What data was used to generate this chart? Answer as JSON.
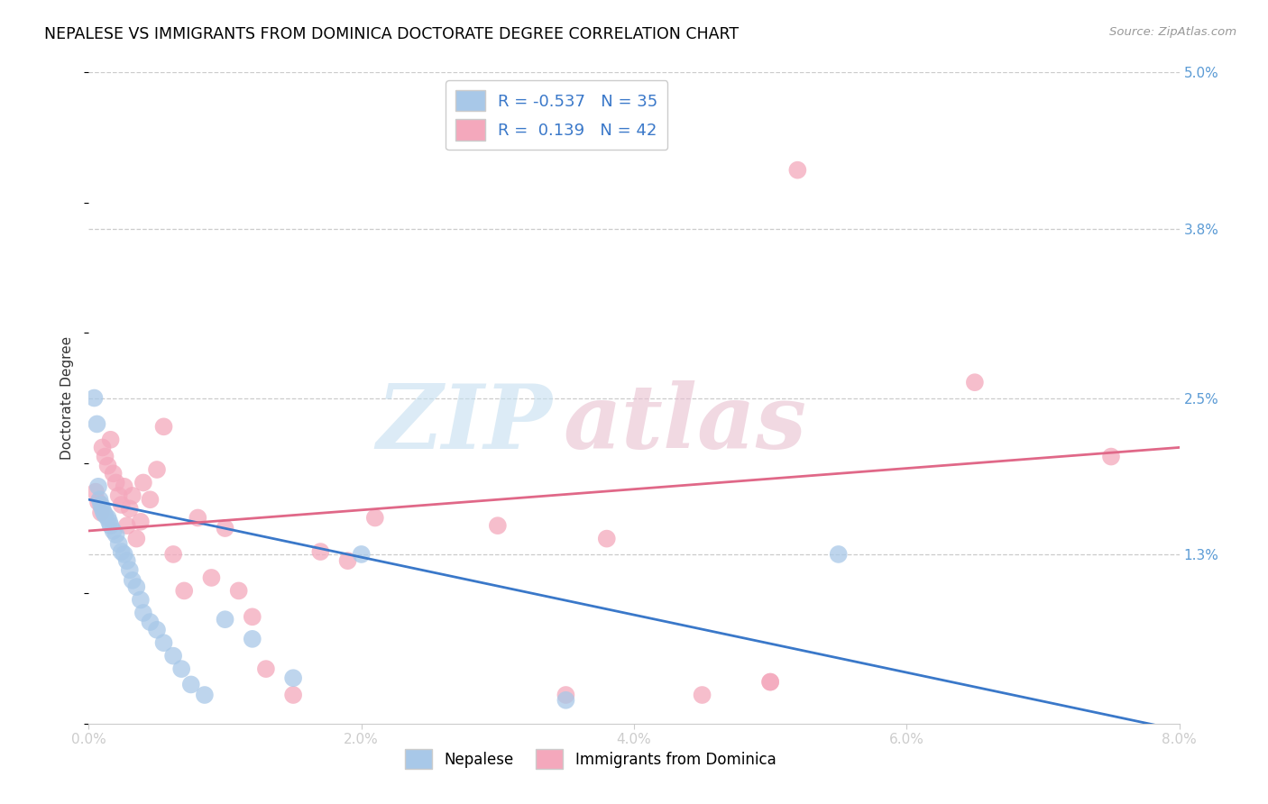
{
  "title": "NEPALESE VS IMMIGRANTS FROM DOMINICA DOCTORATE DEGREE CORRELATION CHART",
  "source": "Source: ZipAtlas.com",
  "ylabel": "Doctorate Degree",
  "xlim": [
    0.0,
    8.0
  ],
  "ylim": [
    0.0,
    5.0
  ],
  "yticks": [
    1.3,
    2.5,
    3.8,
    5.0
  ],
  "ytick_labels": [
    "1.3%",
    "2.5%",
    "3.8%",
    "5.0%"
  ],
  "xtick_vals": [
    0,
    2,
    4,
    6,
    8
  ],
  "xtick_labels": [
    "0.0%",
    "2.0%",
    "4.0%",
    "6.0%",
    "8.0%"
  ],
  "legend_blue_r": "-0.537",
  "legend_blue_n": "35",
  "legend_pink_r": "0.139",
  "legend_pink_n": "42",
  "legend_label_blue": "Nepalese",
  "legend_label_pink": "Immigrants from Dominica",
  "blue_color": "#a8c8e8",
  "pink_color": "#f4a8bc",
  "blue_line_color": "#3a78c9",
  "pink_line_color": "#e06888",
  "blue_trend_start": 1.72,
  "blue_trend_end": -0.05,
  "pink_trend_start": 1.48,
  "pink_trend_end": 2.12,
  "nepalese_x": [
    0.04,
    0.06,
    0.07,
    0.08,
    0.09,
    0.1,
    0.11,
    0.12,
    0.14,
    0.15,
    0.16,
    0.18,
    0.2,
    0.22,
    0.24,
    0.26,
    0.28,
    0.3,
    0.32,
    0.35,
    0.38,
    0.4,
    0.45,
    0.5,
    0.55,
    0.62,
    0.68,
    0.75,
    0.85,
    1.0,
    1.2,
    1.5,
    2.0,
    3.5,
    5.5
  ],
  "nepalese_y": [
    2.5,
    2.3,
    1.82,
    1.72,
    1.68,
    1.65,
    1.62,
    1.6,
    1.58,
    1.55,
    1.52,
    1.48,
    1.45,
    1.38,
    1.32,
    1.3,
    1.25,
    1.18,
    1.1,
    1.05,
    0.95,
    0.85,
    0.78,
    0.72,
    0.62,
    0.52,
    0.42,
    0.3,
    0.22,
    0.8,
    0.65,
    0.35,
    1.3,
    0.18,
    1.3
  ],
  "dominica_x": [
    0.05,
    0.07,
    0.09,
    0.1,
    0.12,
    0.14,
    0.16,
    0.18,
    0.2,
    0.22,
    0.24,
    0.26,
    0.28,
    0.3,
    0.32,
    0.35,
    0.38,
    0.4,
    0.45,
    0.5,
    0.55,
    0.62,
    0.7,
    0.8,
    0.9,
    1.0,
    1.1,
    1.2,
    1.3,
    1.5,
    1.7,
    1.9,
    2.1,
    3.0,
    3.5,
    4.5,
    5.0,
    5.2,
    6.5,
    7.5,
    3.8,
    5.0
  ],
  "dominica_y": [
    1.78,
    1.7,
    1.62,
    2.12,
    2.05,
    1.98,
    2.18,
    1.92,
    1.85,
    1.75,
    1.68,
    1.82,
    1.52,
    1.65,
    1.75,
    1.42,
    1.55,
    1.85,
    1.72,
    1.95,
    2.28,
    1.3,
    1.02,
    1.58,
    1.12,
    1.5,
    1.02,
    0.82,
    0.42,
    0.22,
    1.32,
    1.25,
    1.58,
    1.52,
    0.22,
    0.22,
    0.32,
    4.25,
    2.62,
    2.05,
    1.42,
    0.32
  ]
}
